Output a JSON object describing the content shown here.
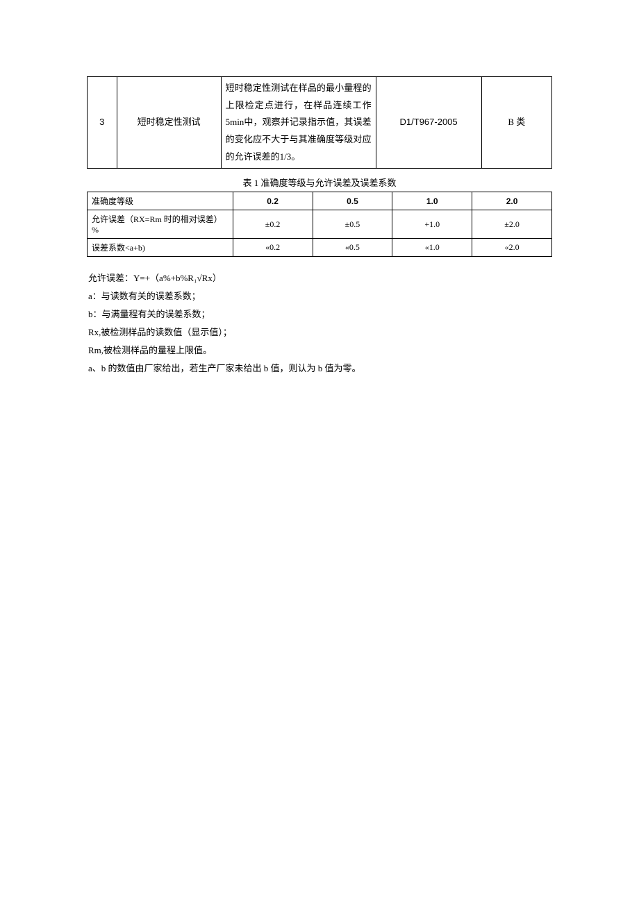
{
  "table1": {
    "row": {
      "index": "3",
      "name": "短时稳定性测试",
      "desc": "短时稳定性测试在样品的最小量程的上限检定点进行，在样品连续工作5min中，观察并记录指示值，其误差的变化应不大于与其准确度等级对应的允许误差的1/3。",
      "standard": "D1/T967-2005",
      "category": "B 类"
    }
  },
  "caption": "表 1 准确度等级与允许误差及误差系数",
  "table2": {
    "rows": [
      {
        "label": "准确度等级",
        "vals": [
          "0.2",
          "0.5",
          "1.0",
          "2.0"
        ],
        "hdr": true
      },
      {
        "label": "允许误差（RX=Rm 时的相对误差）%",
        "vals": [
          "±0.2",
          "±0.5",
          "+1.0",
          "±2.0"
        ],
        "hdr": false
      },
      {
        "label": "误差系数<a+b)",
        "vals": [
          "«0.2",
          "«0.5",
          "«1.0",
          "«2.0"
        ],
        "hdr": false
      }
    ]
  },
  "notes": [
    "允许误差：Y=+（a%+b%R₁√Rx）",
    "a：与读数有关的误差系数；",
    "b：与满量程有关的误差系数；",
    "Rx,被检测样品的读数值（显示值）；",
    "Rm,被检测样品的量程上限值。",
    "a、b 的数值由厂家给出，若生产厂家未给出 b 值，则认为 b 值为零。"
  ]
}
